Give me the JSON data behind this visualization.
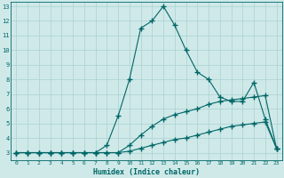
{
  "title": "",
  "xlabel": "Humidex (Indice chaleur)",
  "xlim": [
    -0.5,
    23.5
  ],
  "ylim": [
    2.5,
    13.3
  ],
  "xticks": [
    0,
    1,
    2,
    3,
    4,
    5,
    6,
    7,
    8,
    9,
    10,
    11,
    12,
    13,
    14,
    15,
    16,
    17,
    18,
    19,
    20,
    21,
    22,
    23
  ],
  "yticks": [
    3,
    4,
    5,
    6,
    7,
    8,
    9,
    10,
    11,
    12,
    13
  ],
  "bg_color": "#cfe9e9",
  "grid_color": "#b0d4d4",
  "line_color": "#006666",
  "line1_x": [
    0,
    1,
    2,
    3,
    4,
    5,
    6,
    7,
    8,
    9,
    10,
    11,
    12,
    13,
    14,
    15,
    16,
    17,
    18,
    19,
    20,
    21,
    22,
    23
  ],
  "line1_y": [
    3,
    3,
    3,
    3,
    3,
    3,
    3,
    3,
    3.5,
    5.5,
    8,
    11.5,
    12,
    13,
    11.7,
    10,
    8.5,
    8,
    6.8,
    6.5,
    6.5,
    7.8,
    5.3,
    3.3
  ],
  "line2_x": [
    0,
    1,
    2,
    3,
    4,
    5,
    6,
    7,
    8,
    9,
    10,
    11,
    12,
    13,
    14,
    15,
    16,
    17,
    18,
    19,
    20,
    21,
    22,
    23
  ],
  "line2_y": [
    3,
    3,
    3,
    3,
    3,
    3,
    3,
    3,
    3,
    3,
    3.5,
    4.2,
    4.8,
    5.3,
    5.6,
    5.8,
    6.0,
    6.3,
    6.5,
    6.6,
    6.7,
    6.8,
    6.9,
    3.3
  ],
  "line3_x": [
    0,
    1,
    2,
    3,
    4,
    5,
    6,
    7,
    8,
    9,
    10,
    11,
    12,
    13,
    14,
    15,
    16,
    17,
    18,
    19,
    20,
    21,
    22,
    23
  ],
  "line3_y": [
    3,
    3,
    3,
    3,
    3,
    3,
    3,
    3,
    3,
    3,
    3.1,
    3.3,
    3.5,
    3.7,
    3.9,
    4.0,
    4.2,
    4.4,
    4.6,
    4.8,
    4.9,
    5.0,
    5.1,
    3.3
  ]
}
